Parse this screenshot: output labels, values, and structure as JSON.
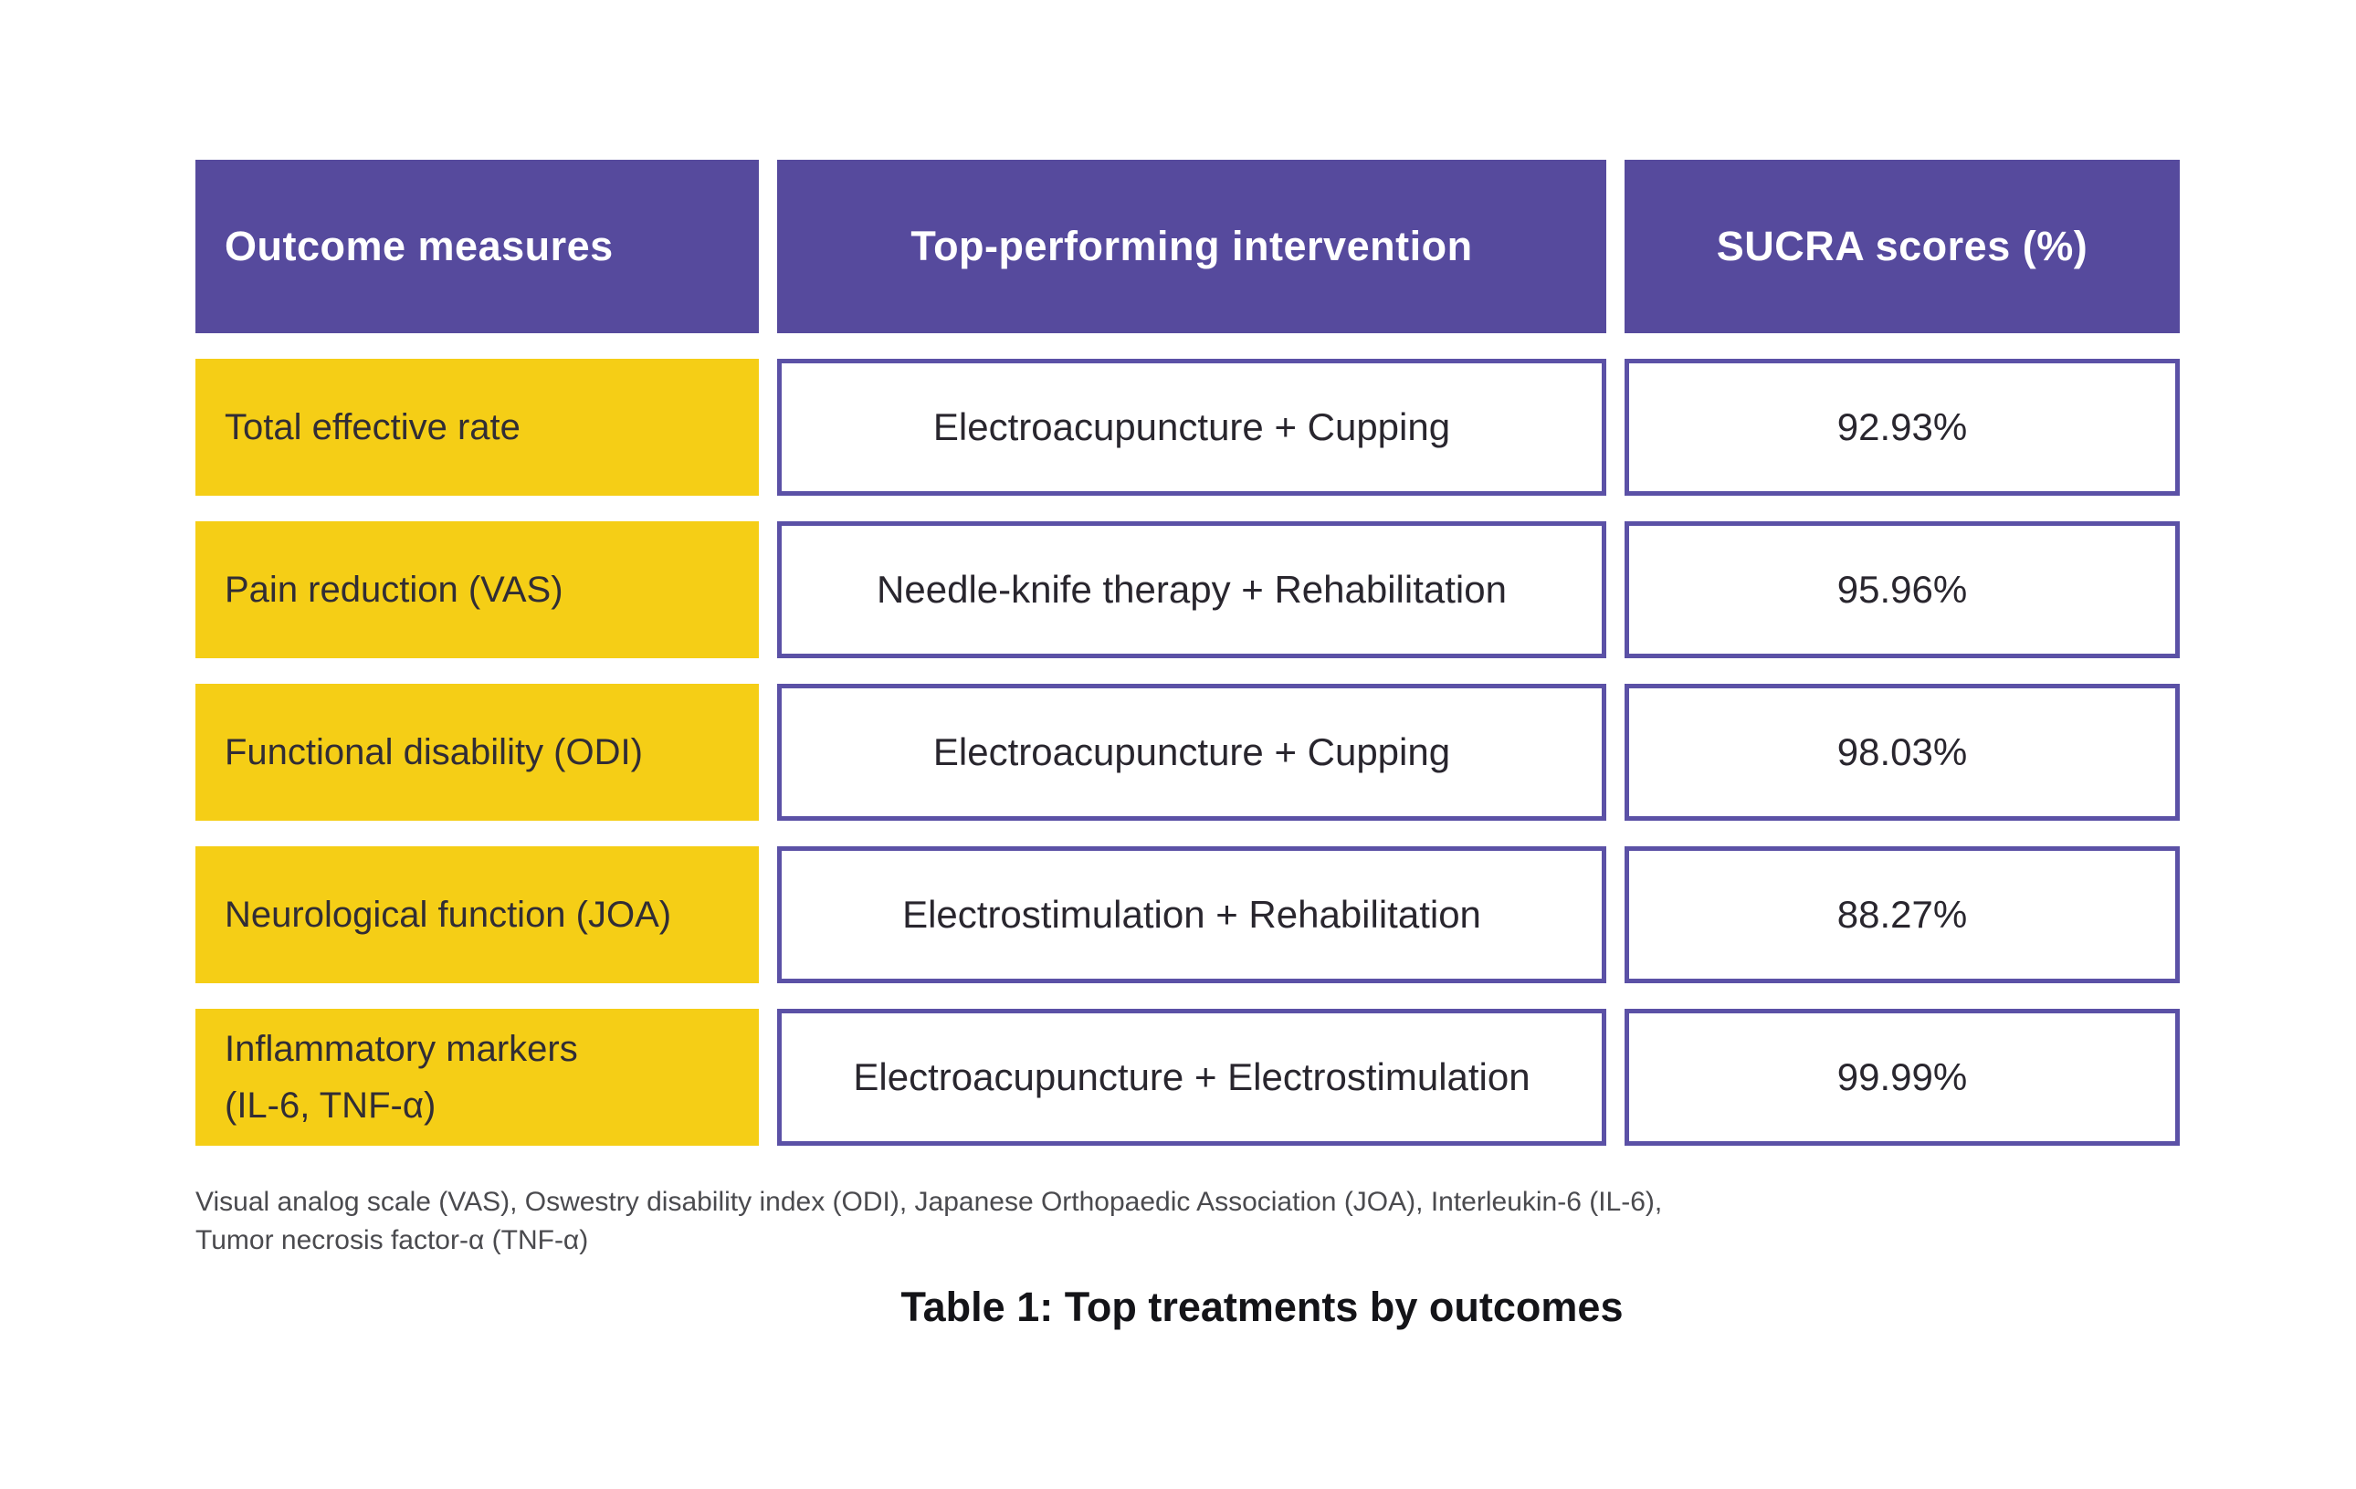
{
  "table": {
    "columns": [
      "Outcome measures",
      "Top-performing intervention",
      "SUCRA scores (%)"
    ],
    "rows": [
      {
        "outcome_lines": [
          "Total effective rate"
        ],
        "intervention": "Electroacupuncture + Cupping",
        "sucra": "92.93%"
      },
      {
        "outcome_lines": [
          "Pain reduction (VAS)"
        ],
        "intervention": "Needle-knife therapy + Rehabilitation",
        "sucra": "95.96%"
      },
      {
        "outcome_lines": [
          "Functional disability (ODI)"
        ],
        "intervention": "Electroacupuncture + Cupping",
        "sucra": "98.03%"
      },
      {
        "outcome_lines": [
          "Neurological function (JOA)"
        ],
        "intervention": "Electrostimulation + Rehabilitation",
        "sucra": "88.27%"
      },
      {
        "outcome_lines": [
          "Inflammatory markers",
          "(IL-6, TNF-α)"
        ],
        "intervention": "Electroacupuncture + Electrostimulation",
        "sucra": "99.99%"
      }
    ],
    "footnote_lines": [
      "Visual analog scale (VAS), Oswestry disability index (ODI), Japanese Orthopaedic Association (JOA), Interleukin-6 (IL-6),",
      "Tumor necrosis factor-α (TNF-α)"
    ],
    "caption": "Table 1: Top treatments by outcomes"
  },
  "chart_data": {
    "type": "table",
    "title": "Table 1: Top treatments by outcomes",
    "columns": [
      "Outcome measures",
      "Top-performing intervention",
      "SUCRA scores (%)"
    ],
    "rows": [
      [
        "Total effective rate",
        "Electroacupuncture + Cupping",
        "92.93%"
      ],
      [
        "Pain reduction (VAS)",
        "Needle-knife therapy + Rehabilitation",
        "95.96%"
      ],
      [
        "Functional disability (ODI)",
        "Electroacupuncture + Cupping",
        "98.03%"
      ],
      [
        "Neurological function (JOA)",
        "Electrostimulation + Rehabilitation",
        "88.27%"
      ],
      [
        "Inflammatory markers (IL-6, TNF-α)",
        "Electroacupuncture + Electrostimulation",
        "99.99%"
      ]
    ],
    "sucra_values": [
      92.93,
      95.96,
      98.03,
      88.27,
      99.99
    ],
    "footnote": "Visual analog scale (VAS), Oswestry disability index (ODI), Japanese Orthopaedic Association (JOA), Interleukin-6 (IL-6), Tumor necrosis factor-α (TNF-α)"
  },
  "colors": {
    "header_purple": "#564A9D",
    "cell_border_purple": "#5B51A6",
    "row_yellow": "#F5CE16",
    "header_text": "#FFFFFF",
    "cell_text": "#29262E",
    "yellow_cell_text": "#312D35",
    "footnote_text": "#4A4A4E",
    "caption_text": "#141418",
    "page_bg": "#FFFFFF"
  }
}
